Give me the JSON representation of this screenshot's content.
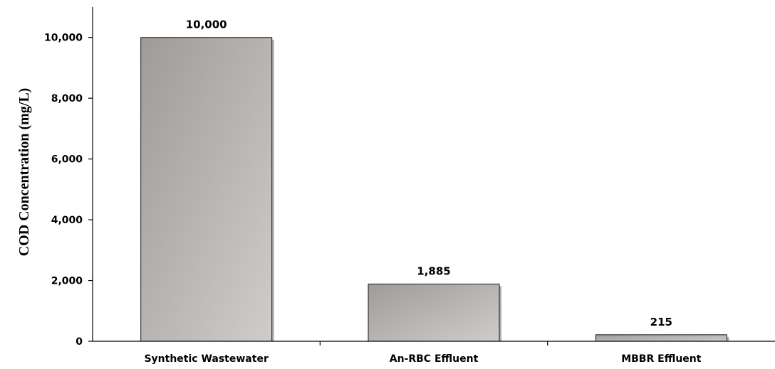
{
  "chart_data": {
    "type": "bar",
    "categories": [
      "Synthetic Wastewater",
      "An-RBC Effluent",
      "MBBR Effluent"
    ],
    "values": [
      10000,
      1885,
      215
    ],
    "value_labels": [
      "10,000",
      "1,885",
      "215"
    ],
    "ylabel": "COD Concentration (mg/L)",
    "xlabel": "",
    "ylim": [
      0,
      11000
    ],
    "yticks": [
      0,
      2000,
      4000,
      6000,
      8000,
      10000
    ],
    "ytick_labels": [
      "0",
      "2,000",
      "4,000",
      "6,000",
      "8,000",
      "10,000"
    ],
    "grid": false,
    "legend": "none",
    "bar_color": "#a9a6a4"
  }
}
